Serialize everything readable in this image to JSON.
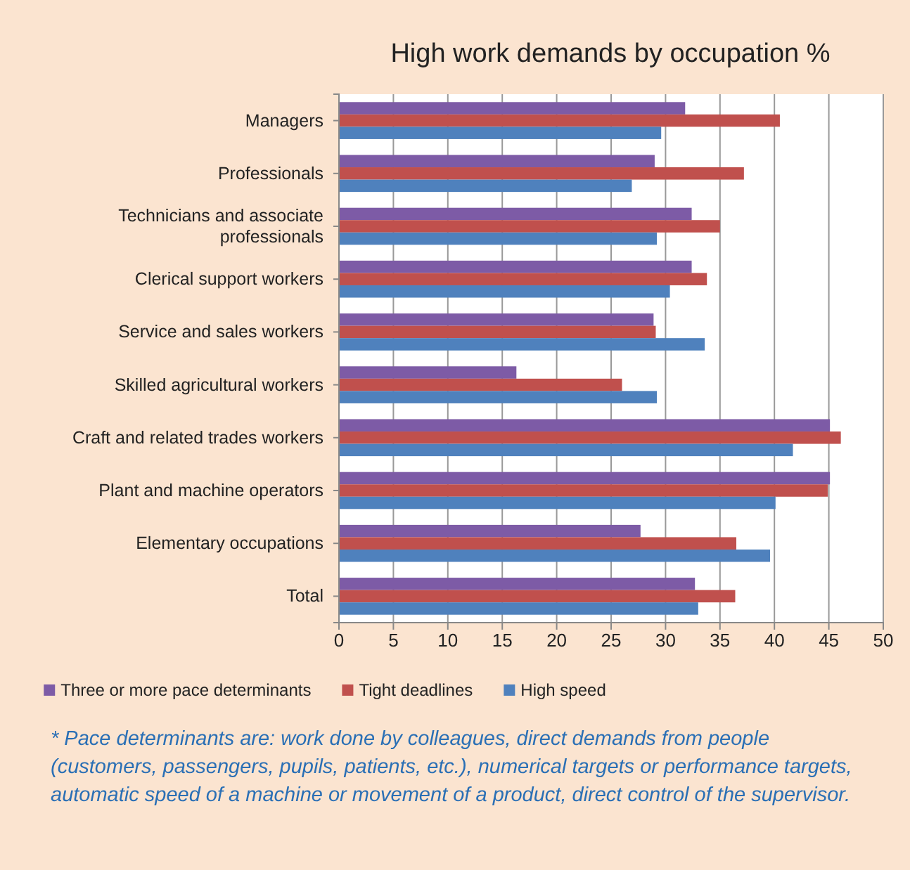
{
  "chart_data": {
    "type": "bar",
    "orientation": "horizontal",
    "title": "High work demands by occupation %",
    "categories": [
      "Managers",
      "Professionals",
      "Technicians and associate professionals",
      "Clerical support workers",
      "Service and sales workers",
      "Skilled agricultural workers",
      "Craft and related trades workers",
      "Plant and machine operators",
      "Elementary occupations",
      "Total"
    ],
    "series": [
      {
        "name": "Three or more pace determinants",
        "color": "#7d5ba6",
        "values": [
          31.8,
          29.0,
          32.4,
          32.4,
          28.9,
          16.3,
          45.1,
          45.1,
          27.7,
          32.7
        ]
      },
      {
        "name": "Tight deadlines",
        "color": "#c0504d",
        "values": [
          40.5,
          37.2,
          35.0,
          33.8,
          29.1,
          26.0,
          46.1,
          44.9,
          36.5,
          36.4
        ]
      },
      {
        "name": "High speed",
        "color": "#4f81bd",
        "values": [
          29.6,
          26.9,
          29.2,
          30.4,
          33.6,
          29.2,
          41.7,
          40.1,
          39.6,
          33.0
        ]
      }
    ],
    "xlim": [
      0,
      50
    ],
    "xticks": [
      0,
      5,
      10,
      15,
      20,
      25,
      30,
      35,
      40,
      45,
      50
    ],
    "grid": "x",
    "legend": "bottom",
    "annotations": [
      "* Pace determinants are: work done by colleagues, direct demands from people (customers, passengers, pupils, patients, etc.), numerical targets or performance targets, automatic speed of a machine or movement of a product, direct control of the supervisor."
    ]
  }
}
